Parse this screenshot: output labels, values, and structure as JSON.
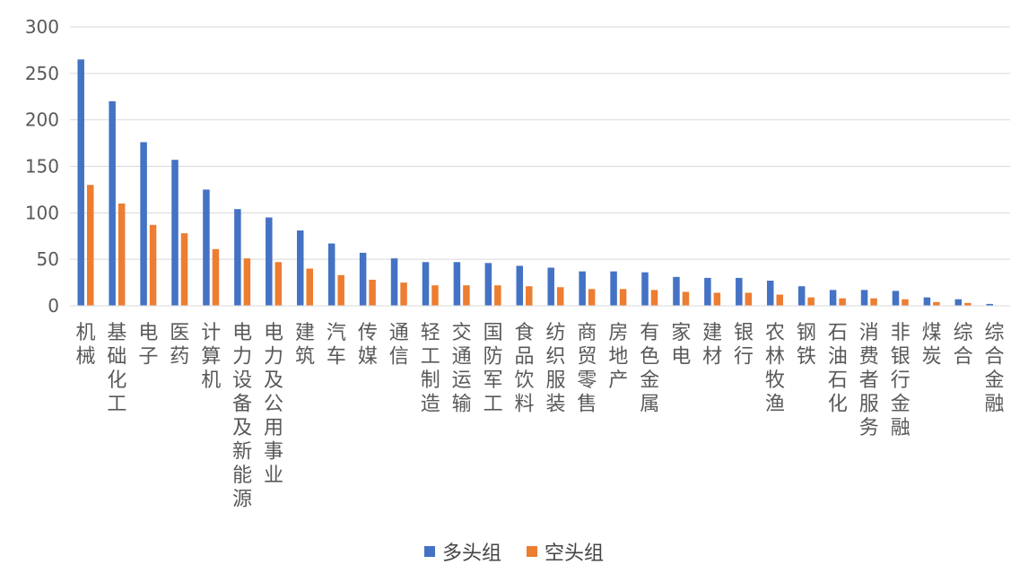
{
  "chart_data": {
    "type": "bar",
    "categories": [
      "机械",
      "基础化工",
      "电子",
      "医药",
      "计算机",
      "电力设备及新能源",
      "电力及公用事业",
      "建筑",
      "汽车",
      "传媒",
      "通信",
      "轻工制造",
      "交通运输",
      "国防军工",
      "食品饮料",
      "纺织服装",
      "商贸零售",
      "房地产",
      "有色金属",
      "家电",
      "建材",
      "银行",
      "农林牧渔",
      "钢铁",
      "石油石化",
      "消费者服务",
      "非银行金融",
      "煤炭",
      "综合",
      "综合金融"
    ],
    "series": [
      {
        "name": "多头组",
        "color": "#4472c4",
        "values": [
          265,
          220,
          176,
          157,
          125,
          104,
          95,
          81,
          67,
          57,
          51,
          47,
          47,
          46,
          43,
          41,
          37,
          37,
          36,
          31,
          30,
          30,
          27,
          21,
          17,
          17,
          16,
          9,
          7,
          2
        ]
      },
      {
        "name": "空头组",
        "color": "#ed7d31",
        "values": [
          130,
          110,
          87,
          78,
          61,
          51,
          47,
          40,
          33,
          28,
          25,
          22,
          22,
          22,
          21,
          20,
          18,
          18,
          17,
          15,
          14,
          14,
          12,
          9,
          8,
          8,
          7,
          4,
          3,
          0
        ]
      }
    ],
    "y_ticks": [
      "0",
      "50",
      "100",
      "150",
      "200",
      "250",
      "300"
    ],
    "ylim": [
      0,
      300
    ],
    "grid": true,
    "legend_position": "bottom"
  }
}
